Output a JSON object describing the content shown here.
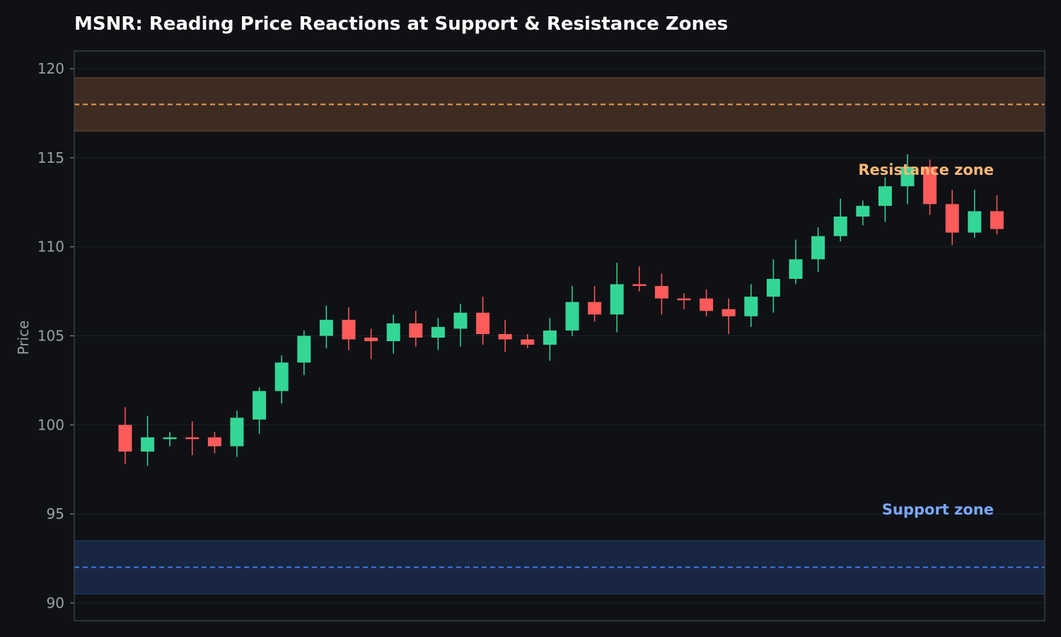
{
  "chart_data": {
    "type": "candlestick",
    "title": "MSNR: Reading Price Reactions at Support & Resistance Zones",
    "ylabel": "Price",
    "xlabel": "",
    "ylim": [
      89,
      121
    ],
    "yticks": [
      "90",
      "95",
      "100",
      "105",
      "110",
      "115",
      "120"
    ],
    "grid": true,
    "colors": {
      "background": "#0f1115",
      "up": "#34d695",
      "down": "#ff5b5b",
      "grid": "#1f232b",
      "axis": "#3a3f48",
      "resistance_fill": "#3e2c22",
      "resistance_line": "#f0a050",
      "resistance_label": "#ffb877",
      "support_fill": "#182641",
      "support_line": "#3f7fe8",
      "support_label": "#79a8ff"
    },
    "zones": {
      "resistance": {
        "label": "Resistance zone",
        "low": 116.5,
        "high": 119.5,
        "level": 118
      },
      "support": {
        "label": "Support zone",
        "low": 90.5,
        "high": 93.5,
        "level": 92
      }
    },
    "candles": [
      {
        "o": 100.0,
        "h": 101.0,
        "l": 97.8,
        "c": 98.5
      },
      {
        "o": 98.5,
        "h": 100.5,
        "l": 97.7,
        "c": 99.3
      },
      {
        "o": 99.2,
        "h": 99.6,
        "l": 98.8,
        "c": 99.3
      },
      {
        "o": 99.3,
        "h": 100.2,
        "l": 98.3,
        "c": 99.2
      },
      {
        "o": 99.3,
        "h": 99.6,
        "l": 98.4,
        "c": 98.8
      },
      {
        "o": 98.8,
        "h": 100.8,
        "l": 98.2,
        "c": 100.4
      },
      {
        "o": 100.3,
        "h": 102.1,
        "l": 99.5,
        "c": 101.9
      },
      {
        "o": 101.9,
        "h": 103.9,
        "l": 101.2,
        "c": 103.5
      },
      {
        "o": 103.5,
        "h": 105.3,
        "l": 102.8,
        "c": 105.0
      },
      {
        "o": 105.0,
        "h": 106.7,
        "l": 104.3,
        "c": 105.9
      },
      {
        "o": 105.9,
        "h": 106.6,
        "l": 104.2,
        "c": 104.8
      },
      {
        "o": 104.9,
        "h": 105.4,
        "l": 103.7,
        "c": 104.7
      },
      {
        "o": 104.7,
        "h": 106.2,
        "l": 104.0,
        "c": 105.7
      },
      {
        "o": 105.7,
        "h": 106.4,
        "l": 104.4,
        "c": 104.9
      },
      {
        "o": 104.9,
        "h": 106.0,
        "l": 104.2,
        "c": 105.5
      },
      {
        "o": 105.4,
        "h": 106.8,
        "l": 104.4,
        "c": 106.3
      },
      {
        "o": 106.3,
        "h": 107.2,
        "l": 104.5,
        "c": 105.1
      },
      {
        "o": 105.1,
        "h": 105.9,
        "l": 104.1,
        "c": 104.8
      },
      {
        "o": 104.8,
        "h": 105.1,
        "l": 104.3,
        "c": 104.5
      },
      {
        "o": 104.5,
        "h": 106.0,
        "l": 103.6,
        "c": 105.3
      },
      {
        "o": 105.3,
        "h": 107.8,
        "l": 105.0,
        "c": 106.9
      },
      {
        "o": 106.9,
        "h": 107.8,
        "l": 105.8,
        "c": 106.2
      },
      {
        "o": 106.2,
        "h": 109.1,
        "l": 105.2,
        "c": 107.9
      },
      {
        "o": 107.9,
        "h": 108.9,
        "l": 107.5,
        "c": 107.8
      },
      {
        "o": 107.8,
        "h": 108.5,
        "l": 106.2,
        "c": 107.1
      },
      {
        "o": 107.1,
        "h": 107.4,
        "l": 106.5,
        "c": 107.0
      },
      {
        "o": 107.1,
        "h": 107.6,
        "l": 106.1,
        "c": 106.4
      },
      {
        "o": 106.5,
        "h": 107.1,
        "l": 105.1,
        "c": 106.1
      },
      {
        "o": 106.1,
        "h": 107.9,
        "l": 105.5,
        "c": 107.2
      },
      {
        "o": 107.2,
        "h": 109.3,
        "l": 106.3,
        "c": 108.2
      },
      {
        "o": 108.2,
        "h": 110.4,
        "l": 107.9,
        "c": 109.3
      },
      {
        "o": 109.3,
        "h": 111.1,
        "l": 108.6,
        "c": 110.6
      },
      {
        "o": 110.6,
        "h": 112.7,
        "l": 110.3,
        "c": 111.7
      },
      {
        "o": 111.7,
        "h": 112.6,
        "l": 111.2,
        "c": 112.3
      },
      {
        "o": 112.3,
        "h": 113.9,
        "l": 111.4,
        "c": 113.4
      },
      {
        "o": 113.4,
        "h": 115.2,
        "l": 112.4,
        "c": 114.5
      },
      {
        "o": 114.5,
        "h": 114.9,
        "l": 111.8,
        "c": 112.4
      },
      {
        "o": 112.4,
        "h": 113.2,
        "l": 110.1,
        "c": 110.8
      },
      {
        "o": 110.8,
        "h": 113.2,
        "l": 110.5,
        "c": 112.0
      },
      {
        "o": 112.0,
        "h": 112.9,
        "l": 110.7,
        "c": 111.0
      }
    ]
  }
}
